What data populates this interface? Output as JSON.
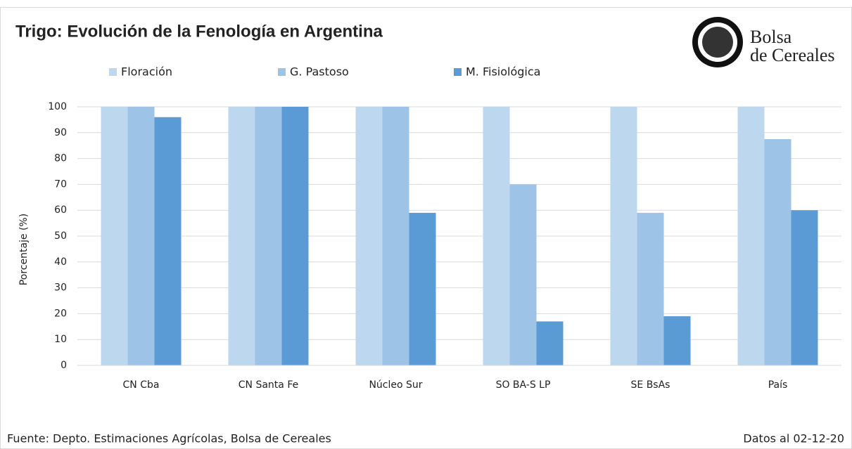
{
  "chart_data": {
    "type": "bar",
    "title": "Trigo: Evolución de la Fenología en Argentina",
    "y_label": "Porcentaje (%)",
    "categories": [
      "CN Cba",
      "CN Santa Fe",
      "Núcleo Sur",
      "SO BA-S LP",
      "SE BsAs",
      "País"
    ],
    "series": [
      {
        "name": "Floración",
        "color": "#bdd7ee",
        "values": [
          100,
          100,
          100,
          100,
          100,
          100
        ]
      },
      {
        "name": "G. Pastoso",
        "color": "#9dc3e6",
        "values": [
          100,
          100,
          100,
          70,
          59,
          87.5
        ]
      },
      {
        "name": "M. Fisiológica",
        "color": "#5b9bd5",
        "values": [
          96,
          100,
          59,
          17,
          19,
          60
        ]
      }
    ],
    "ylim": [
      0,
      100
    ],
    "yticks": [
      0,
      10,
      20,
      30,
      40,
      50,
      60,
      70,
      80,
      90,
      100
    ],
    "grid": true,
    "source": "Fuente: Depto. Estimaciones Agrícolas, Bolsa de Cereales",
    "date_note": "Datos al 02-12-20",
    "logo_lines": [
      "Bolsa",
      "de Cereales"
    ]
  }
}
